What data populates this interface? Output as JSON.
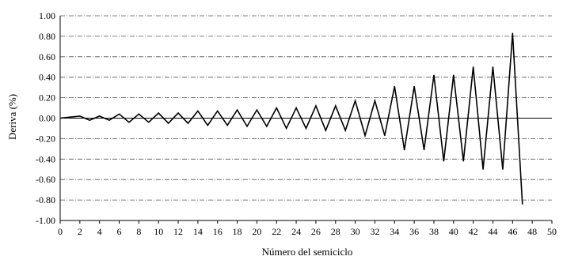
{
  "chart_data": {
    "type": "line",
    "title": "",
    "xlabel": "Número del semiciclo",
    "ylabel": "Deriva  (%)",
    "xlim": [
      0,
      50
    ],
    "ylim": [
      -1.0,
      1.0
    ],
    "xticks": [
      0,
      2,
      4,
      6,
      8,
      10,
      12,
      14,
      16,
      18,
      20,
      22,
      24,
      26,
      28,
      30,
      32,
      34,
      36,
      38,
      40,
      42,
      44,
      46,
      48,
      50
    ],
    "yticks": [
      1.0,
      0.8,
      0.6,
      0.4,
      0.2,
      0.0,
      -0.2,
      -0.4,
      -0.6,
      -0.8,
      -1.0
    ],
    "xtick_labels": [
      "0",
      "2",
      "4",
      "6",
      "8",
      "10",
      "12",
      "14",
      "16",
      "18",
      "20",
      "22",
      "24",
      "26",
      "28",
      "30",
      "32",
      "34",
      "36",
      "38",
      "40",
      "42",
      "44",
      "46",
      "48",
      "50"
    ],
    "ytick_labels": [
      "1.00",
      "0.80",
      "0.60",
      "0.40",
      "0.20",
      "0.00",
      "-0.20",
      "-0.40",
      "-0.60",
      "-0.80",
      "-1.00"
    ],
    "grid": "horizontal dash-dot",
    "series": [
      {
        "color": "#000000",
        "x": [
          0,
          1,
          2,
          3,
          4,
          5,
          6,
          7,
          8,
          9,
          10,
          11,
          12,
          13,
          14,
          15,
          16,
          17,
          18,
          19,
          20,
          21,
          22,
          23,
          24,
          25,
          26,
          27,
          28,
          29,
          30,
          31,
          32,
          33,
          34,
          35,
          36,
          37,
          38,
          39,
          40,
          41,
          42,
          43,
          44,
          45,
          46,
          47
        ],
        "values": [
          0,
          0.01,
          0.02,
          -0.02,
          0.02,
          -0.02,
          0.04,
          -0.04,
          0.04,
          -0.04,
          0.05,
          -0.05,
          0.05,
          -0.05,
          0.07,
          -0.07,
          0.07,
          -0.07,
          0.08,
          -0.08,
          0.08,
          -0.08,
          0.1,
          -0.1,
          0.1,
          -0.1,
          0.12,
          -0.12,
          0.12,
          -0.12,
          0.17,
          -0.17,
          0.17,
          -0.17,
          0.31,
          -0.31,
          0.31,
          -0.31,
          0.42,
          -0.42,
          0.42,
          -0.42,
          0.5,
          -0.5,
          0.5,
          -0.5,
          0.83,
          -0.84
        ]
      }
    ]
  }
}
